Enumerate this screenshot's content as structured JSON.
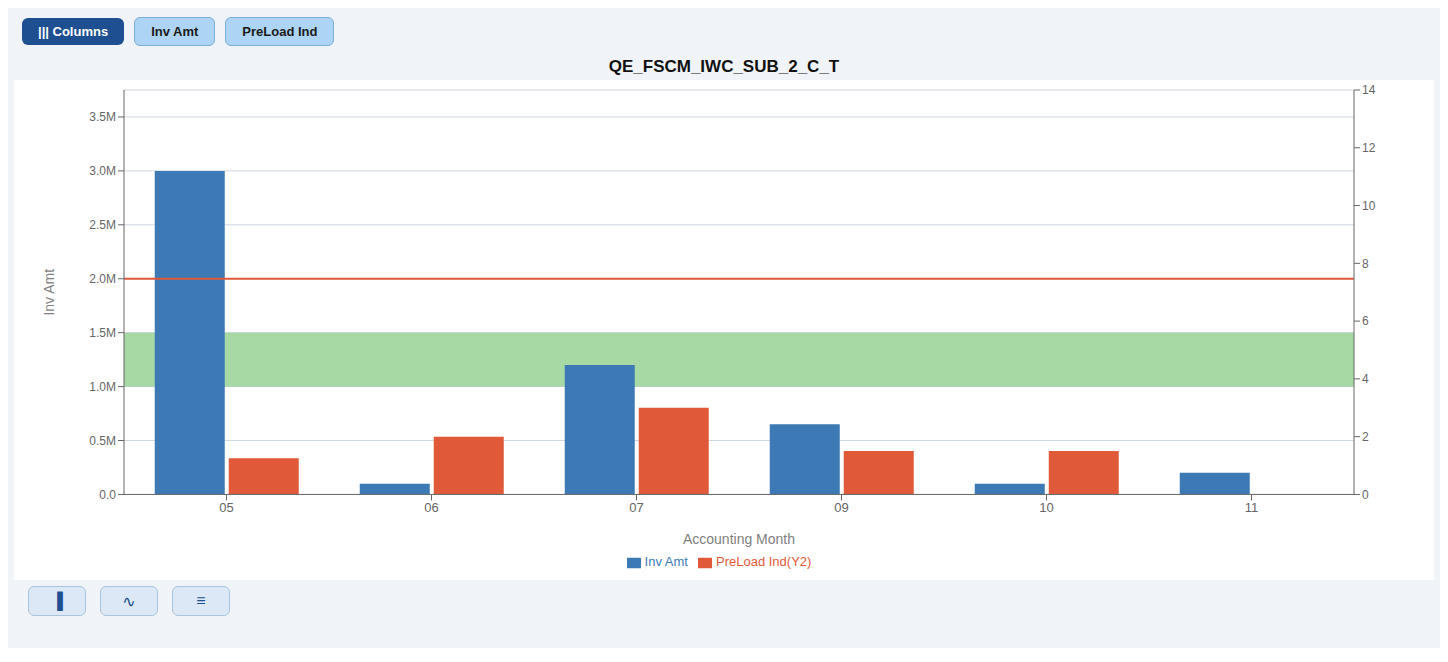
{
  "chart_data": {
    "type": "bar",
    "title": "QE_FSCM_IWC_SUB_2_C_T",
    "x_label": "Accounting Month",
    "y_label": "Inv Amt",
    "categories": [
      "05",
      "06",
      "07",
      "09",
      "10",
      "11"
    ],
    "series": [
      {
        "name": "Inv Amt",
        "color": "#3d7ab5",
        "values": [
          3000000,
          100000,
          1200000,
          650000,
          100000,
          200000
        ]
      },
      {
        "name": "PreLoad Ind(Y2)",
        "color": "#e05a3a",
        "values": [
          1.25,
          2.0,
          3.0,
          1.5,
          1.5,
          0
        ],
        "axis": "y2"
      }
    ],
    "ylim": [
      0,
      3750000
    ],
    "yticks": [
      {
        "value": 0,
        "label": "0.0"
      },
      {
        "value": 500000,
        "label": "0.5M"
      },
      {
        "value": 1000000,
        "label": "1.0M"
      },
      {
        "value": 1500000,
        "label": "1.5M"
      },
      {
        "value": 2000000,
        "label": "2.0M"
      },
      {
        "value": 2500000,
        "label": "2.5M"
      },
      {
        "value": 3000000,
        "label": "3.0M"
      },
      {
        "value": 3500000,
        "label": "3.5M"
      }
    ],
    "y2lim": [
      0,
      14
    ],
    "y2ticks": [
      0,
      2,
      4,
      6,
      8,
      10,
      12,
      14
    ],
    "green_band": {
      "from": 1000000,
      "to": 1500000,
      "color": "#6dbf67"
    },
    "reference_line": {
      "value": 2000000,
      "color": "#e05a3a"
    },
    "grid": true,
    "legend": "bottom",
    "annotations": [
      "||| Columns",
      "Inv Amt",
      "PreLoad Ind",
      "▐",
      "∿",
      "≡"
    ]
  }
}
